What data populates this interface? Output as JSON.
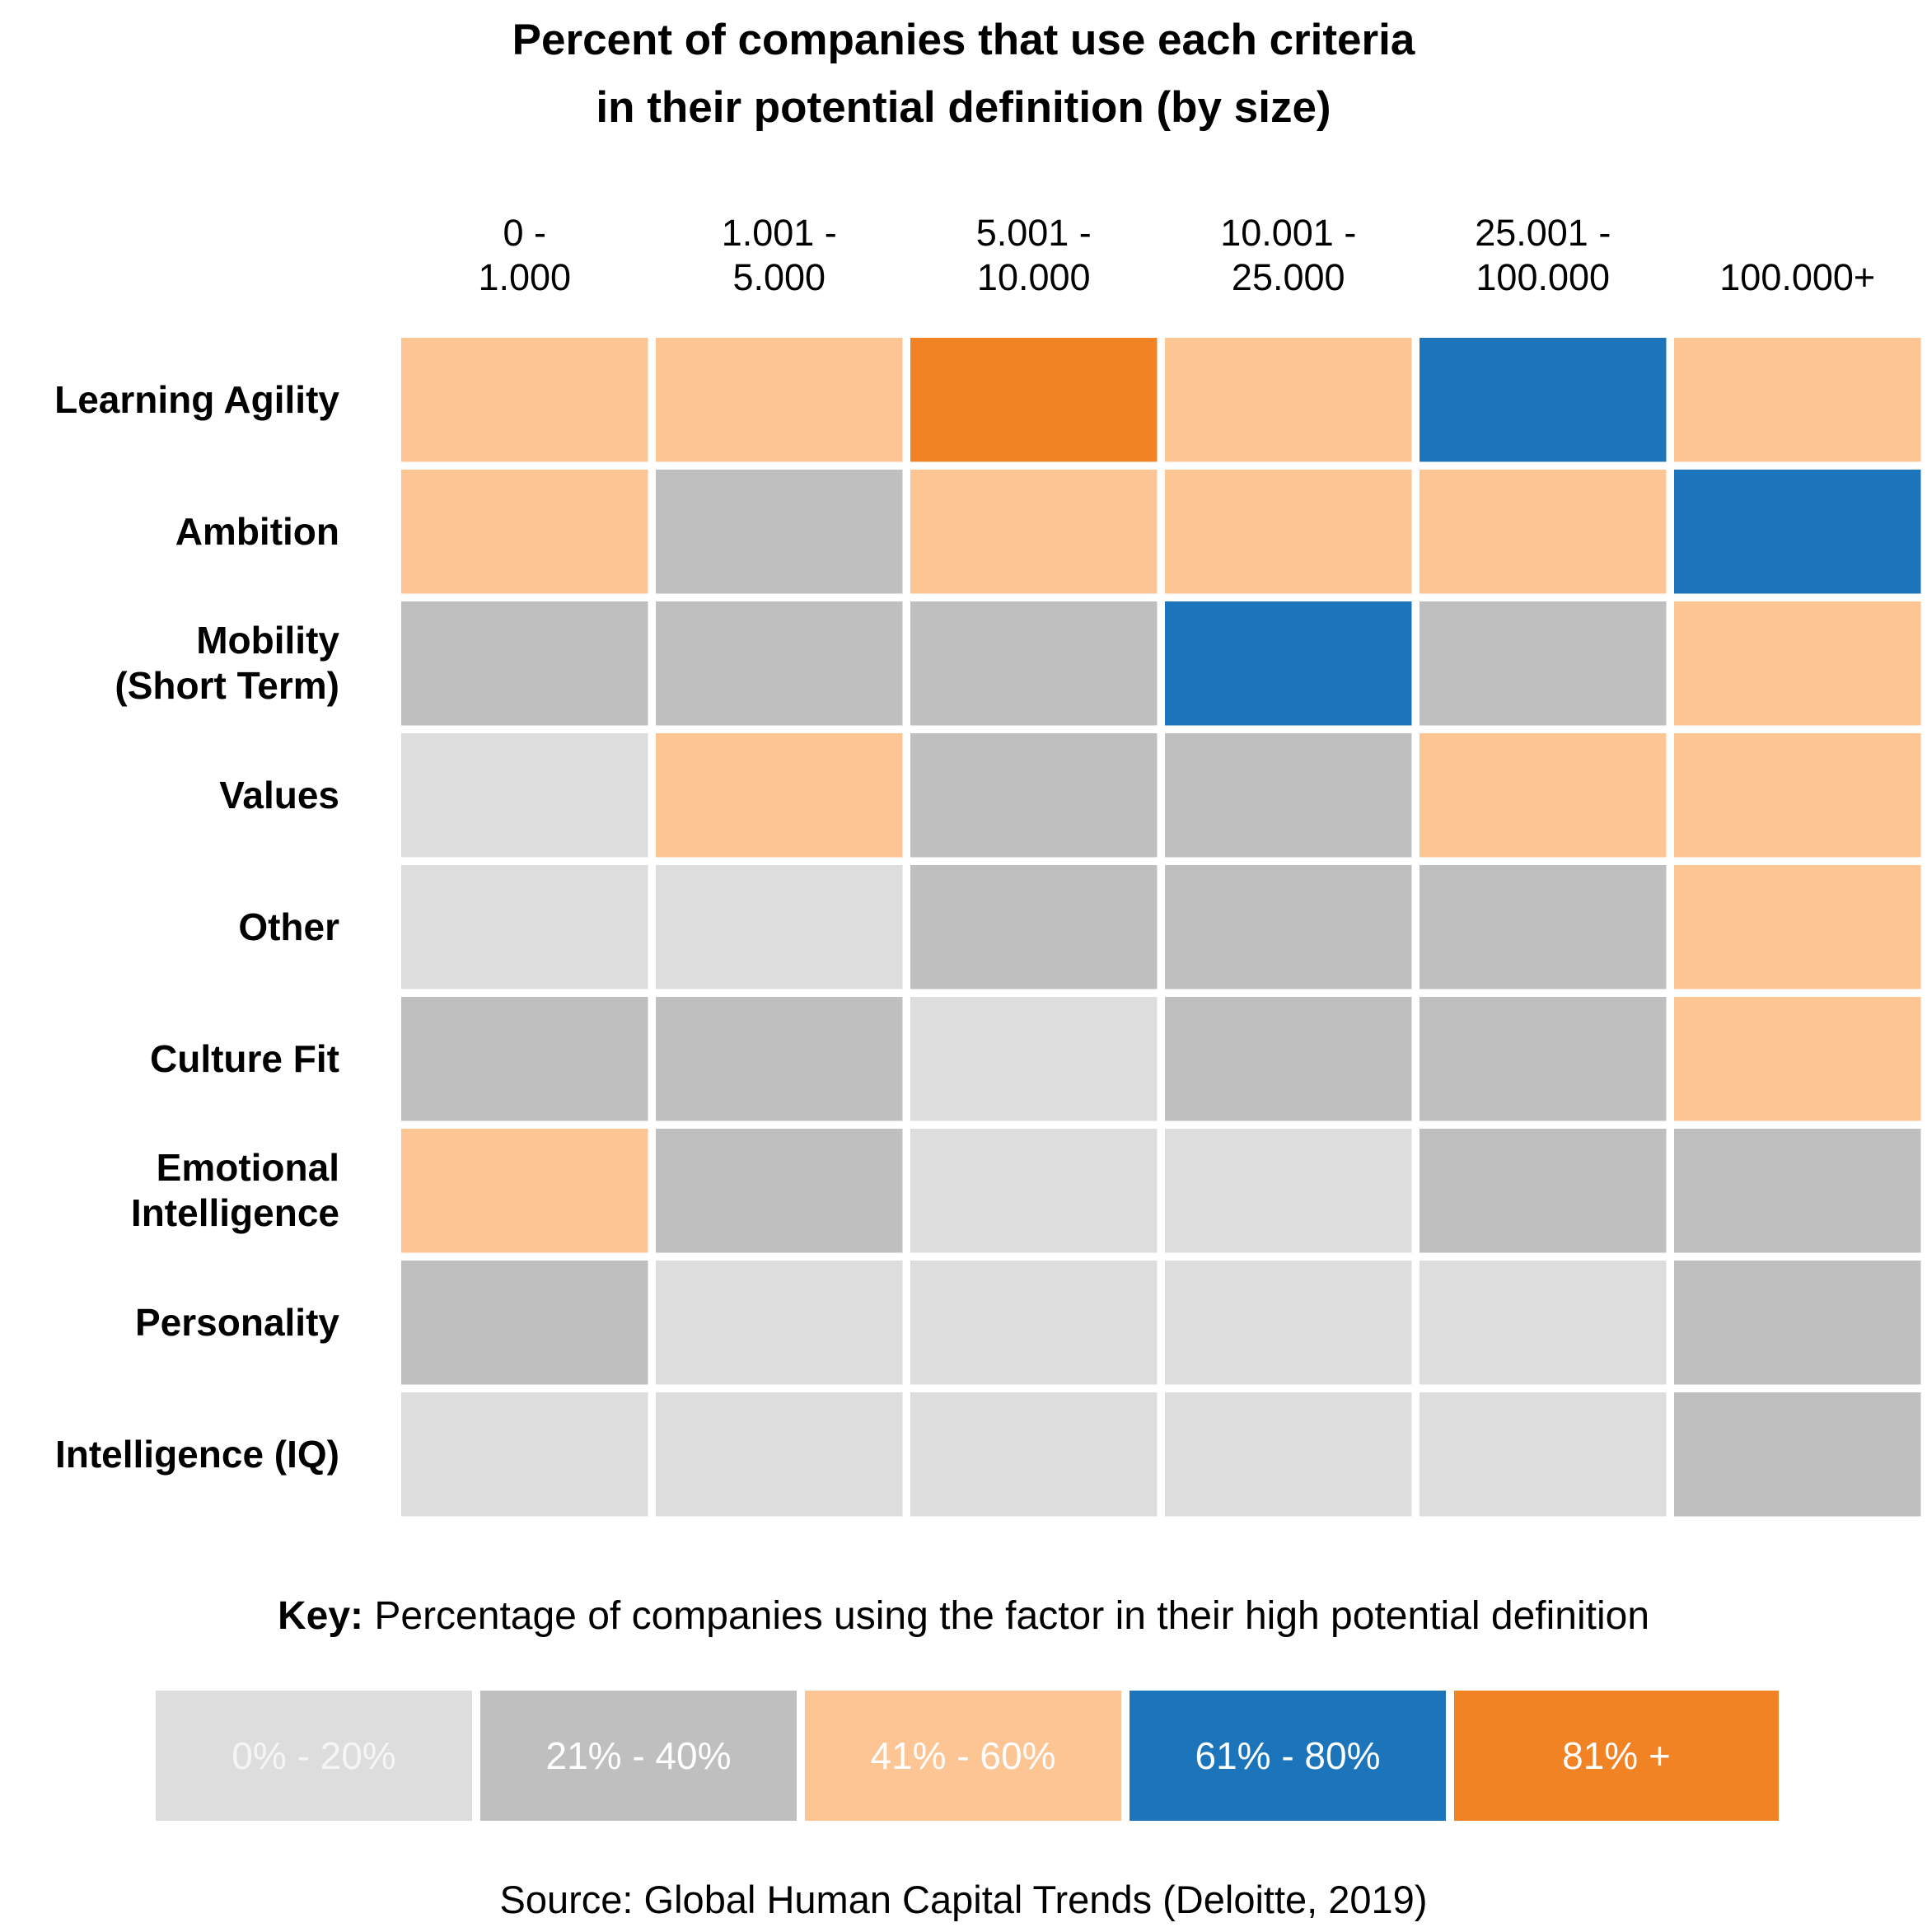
{
  "chart_data": {
    "type": "heatmap",
    "title_lines": [
      "Percent of companies that use each criteria",
      "in their potential definition (by size)"
    ],
    "columns": [
      [
        "0 -",
        "1.000"
      ],
      [
        "1.001 -",
        "5.000"
      ],
      [
        "5.001 -",
        "10.000"
      ],
      [
        "10.001 -",
        "25.000"
      ],
      [
        "25.001 -",
        "100.000"
      ],
      [
        "",
        "100.000+"
      ]
    ],
    "rows": [
      [
        "Learning Agility"
      ],
      [
        "Ambition"
      ],
      [
        "Mobility",
        "(Short Term)"
      ],
      [
        "Values"
      ],
      [
        "Other"
      ],
      [
        "Culture Fit"
      ],
      [
        "Emotional",
        "Intelligence"
      ],
      [
        "Personality"
      ],
      [
        "Intelligence (IQ)"
      ]
    ],
    "values": [
      [
        2,
        2,
        4,
        2,
        3,
        2
      ],
      [
        2,
        1,
        2,
        2,
        2,
        3
      ],
      [
        1,
        1,
        1,
        3,
        1,
        2
      ],
      [
        0,
        2,
        1,
        1,
        2,
        2
      ],
      [
        0,
        0,
        1,
        1,
        1,
        2
      ],
      [
        1,
        1,
        0,
        1,
        1,
        2
      ],
      [
        2,
        1,
        0,
        0,
        1,
        1
      ],
      [
        1,
        0,
        0,
        0,
        0,
        1
      ],
      [
        0,
        0,
        0,
        0,
        0,
        1
      ]
    ],
    "key_label": "Key:",
    "key_text": "Percentage of companies using the factor in their high potential definition",
    "legend": [
      {
        "label": "0% - 20%",
        "color": "#dddddd",
        "text_color": "#f5f5f5"
      },
      {
        "label": "21% - 40%",
        "color": "#bfbfbf",
        "text_color": "#ffffff"
      },
      {
        "label": "41% - 60%",
        "color": "#fdc494",
        "text_color": "#ffffff"
      },
      {
        "label": "61% - 80%",
        "color": "#1c75ba",
        "text_color": "#ffffff"
      },
      {
        "label": "81% +",
        "color": "#f28325",
        "text_color": "#ffffff"
      }
    ],
    "source": "Source: Global Human Capital Trends (Deloitte, 2019)"
  }
}
